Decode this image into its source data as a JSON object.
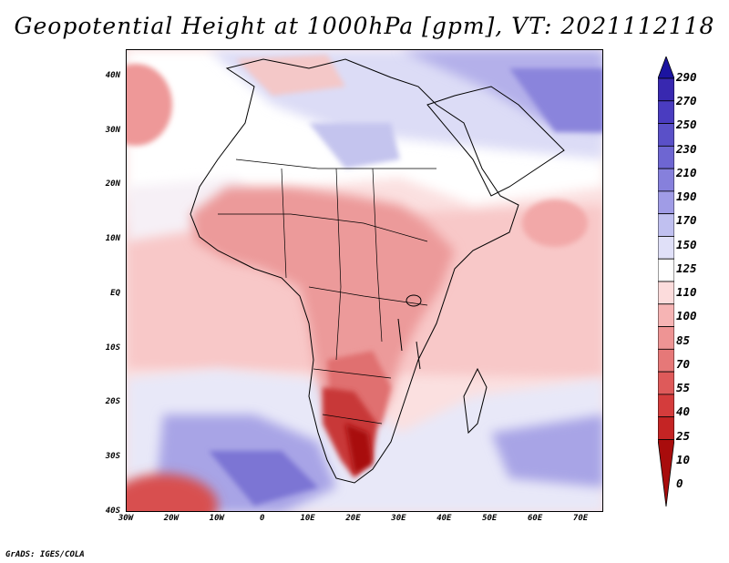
{
  "title": "Geopotential Height at 1000hPa [gpm], VT: 2021112118",
  "credit": "GrADS: IGES/COLA",
  "map": {
    "extent": {
      "lon_min": -30,
      "lon_max": 75,
      "lat_min": -40,
      "lat_max": 45
    },
    "lat_ticks": [
      {
        "value": 40,
        "label": "40N"
      },
      {
        "value": 30,
        "label": "30N"
      },
      {
        "value": 20,
        "label": "20N"
      },
      {
        "value": 10,
        "label": "10N"
      },
      {
        "value": 0,
        "label": "EQ"
      },
      {
        "value": -10,
        "label": "10S"
      },
      {
        "value": -20,
        "label": "20S"
      },
      {
        "value": -30,
        "label": "30S"
      },
      {
        "value": -40,
        "label": "40S"
      }
    ],
    "lon_ticks": [
      {
        "value": -30,
        "label": "30W"
      },
      {
        "value": -20,
        "label": "20W"
      },
      {
        "value": -10,
        "label": "10W"
      },
      {
        "value": 0,
        "label": "0"
      },
      {
        "value": 10,
        "label": "10E"
      },
      {
        "value": 20,
        "label": "20E"
      },
      {
        "value": 30,
        "label": "30E"
      },
      {
        "value": 40,
        "label": "40E"
      },
      {
        "value": 50,
        "label": "50E"
      },
      {
        "value": 60,
        "label": "60E"
      },
      {
        "value": 70,
        "label": "70E"
      }
    ]
  },
  "colorbar": {
    "levels": [
      "290",
      "270",
      "250",
      "230",
      "210",
      "190",
      "170",
      "150",
      "125",
      "110",
      "100",
      "85",
      "70",
      "55",
      "40",
      "25",
      "10",
      "0"
    ],
    "colors": [
      "#1c14a0",
      "#3828b0",
      "#4a3cc0",
      "#5a50c8",
      "#6e66d2",
      "#8680dc",
      "#a09ce6",
      "#c0c0f0",
      "#e0e0f8",
      "#ffffff",
      "#fcdcdc",
      "#f6b4b4",
      "#ee9494",
      "#e67878",
      "#de5a5a",
      "#d43c3c",
      "#c42424",
      "#a80c0c"
    ]
  },
  "colors": {
    "ocean": "#fbe3e3",
    "high_blue": "#8c88e0",
    "mid_blue": "#c6c6f0",
    "low_red": "#b01818"
  }
}
